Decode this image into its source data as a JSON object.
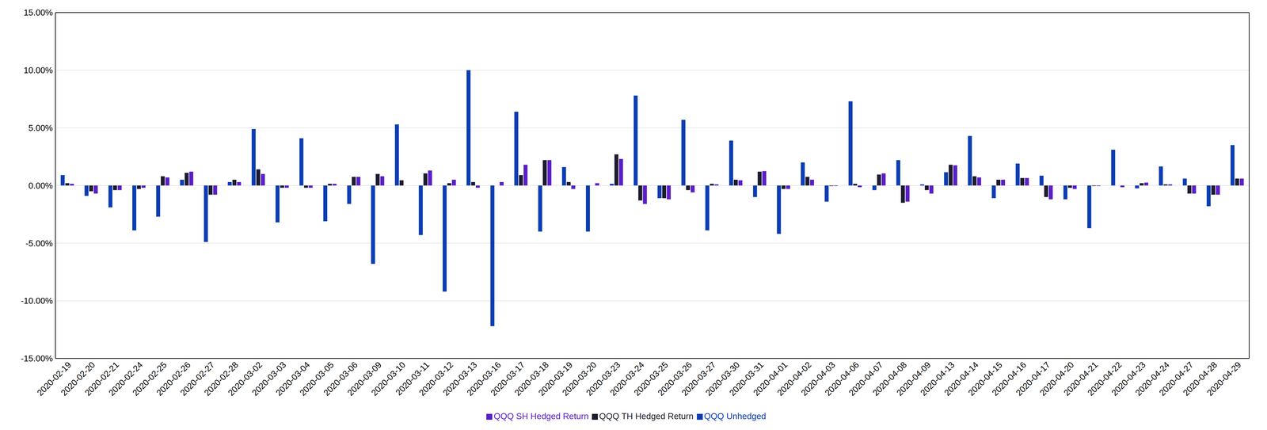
{
  "chart_data": {
    "type": "bar",
    "categories": [
      "2020-02-19",
      "2020-02-20",
      "2020-02-21",
      "2020-02-24",
      "2020-02-25",
      "2020-02-26",
      "2020-02-27",
      "2020-02-28",
      "2020-03-02",
      "2020-03-03",
      "2020-03-04",
      "2020-03-05",
      "2020-03-06",
      "2020-03-09",
      "2020-03-10",
      "2020-03-11",
      "2020-03-12",
      "2020-03-13",
      "2020-03-16",
      "2020-03-17",
      "2020-03-18",
      "2020-03-19",
      "2020-03-20",
      "2020-03-23",
      "2020-03-24",
      "2020-03-25",
      "2020-03-26",
      "2020-03-27",
      "2020-03-30",
      "2020-03-31",
      "2020-04-01",
      "2020-04-02",
      "2020-04-03",
      "2020-04-06",
      "2020-04-07",
      "2020-04-08",
      "2020-04-09",
      "2020-04-13",
      "2020-04-14",
      "2020-04-15",
      "2020-04-16",
      "2020-04-17",
      "2020-04-20",
      "2020-04-21",
      "2020-04-22",
      "2020-04-23",
      "2020-04-24",
      "2020-04-27",
      "2020-04-28",
      "2020-04-29"
    ],
    "series": [
      {
        "name": "QQQ Unhedged",
        "color": "#0b3db3",
        "values": [
          0.9,
          -0.9,
          -1.9,
          -3.9,
          -2.7,
          0.5,
          -4.9,
          0.3,
          4.9,
          -3.2,
          4.1,
          -3.1,
          -1.6,
          -6.8,
          5.3,
          -4.3,
          -9.2,
          10.0,
          -12.2,
          6.4,
          -4.0,
          1.6,
          -4.0,
          0.15,
          7.8,
          -1.1,
          5.7,
          -3.9,
          3.9,
          -1.0,
          -4.2,
          2.0,
          -1.4,
          7.3,
          -0.4,
          2.2,
          0.1,
          1.15,
          4.3,
          -1.1,
          1.9,
          0.85,
          -1.2,
          -3.7,
          3.1,
          -0.25,
          1.65,
          0.6,
          -1.8,
          3.5
        ]
      },
      {
        "name": "QQQ TH Hedged Return",
        "color": "#1c1c2e",
        "values": [
          0.2,
          -0.5,
          -0.4,
          -0.3,
          0.8,
          1.1,
          -0.8,
          0.5,
          1.4,
          -0.2,
          -0.2,
          0.15,
          0.75,
          1.0,
          0.45,
          1.05,
          0.2,
          0.3,
          0.0,
          0.9,
          2.2,
          0.3,
          0.0,
          2.7,
          -1.3,
          -1.1,
          -0.4,
          0.15,
          0.5,
          1.2,
          -0.3,
          0.75,
          -0.05,
          0.15,
          0.95,
          -1.5,
          -0.4,
          1.8,
          0.8,
          0.5,
          0.65,
          -1.0,
          -0.2,
          -0.05,
          0.0,
          0.2,
          0.1,
          -0.7,
          -0.8,
          0.6
        ]
      },
      {
        "name": "QQQ SH Hedged Return",
        "color": "#5a1fc6",
        "values": [
          0.15,
          -0.7,
          -0.4,
          -0.2,
          0.7,
          1.2,
          -0.8,
          0.3,
          1.0,
          -0.2,
          -0.2,
          0.15,
          0.75,
          0.8,
          0.0,
          1.3,
          0.5,
          -0.2,
          0.3,
          1.8,
          2.2,
          -0.3,
          0.2,
          2.3,
          -1.6,
          -1.2,
          -0.6,
          0.1,
          0.45,
          1.25,
          -0.3,
          0.5,
          -0.05,
          -0.15,
          1.05,
          -1.4,
          -0.7,
          1.75,
          0.7,
          0.5,
          0.65,
          -1.2,
          -0.3,
          -0.05,
          -0.15,
          0.25,
          0.1,
          -0.7,
          -0.8,
          0.6
        ]
      }
    ],
    "ylim": [
      -15,
      15
    ],
    "yticks": [
      {
        "value": -15,
        "label": "-15.00%"
      },
      {
        "value": -10,
        "label": "-10.00%"
      },
      {
        "value": -5,
        "label": "-5.00%"
      },
      {
        "value": 0,
        "label": "0.00%"
      },
      {
        "value": 5,
        "label": "5.00%"
      },
      {
        "value": 10,
        "label": "10.00%"
      },
      {
        "value": 15,
        "label": "15.00%"
      }
    ],
    "grid": true,
    "legend": "bottom"
  }
}
